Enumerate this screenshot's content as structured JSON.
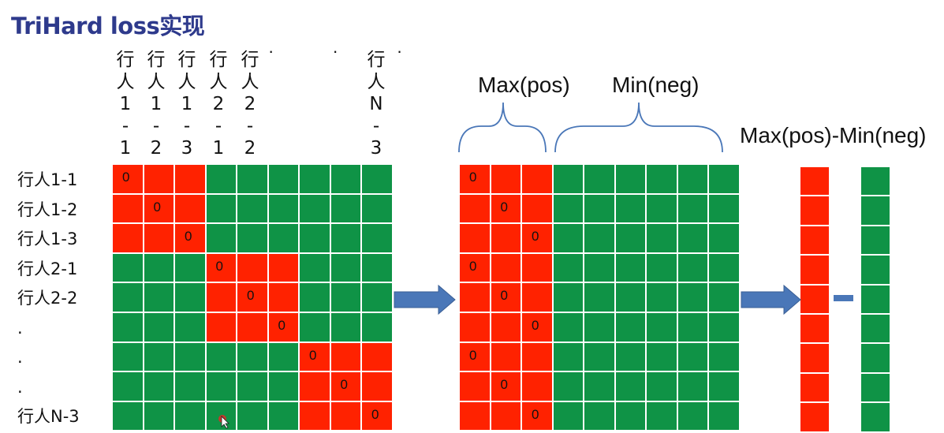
{
  "title": "TriHard loss实现",
  "column_labels": [
    [
      "行",
      "人",
      "1",
      "-",
      "1"
    ],
    [
      "行",
      "人",
      "1",
      "-",
      "2"
    ],
    [
      "行",
      "人",
      "1",
      "-",
      "3"
    ],
    [
      "行",
      "人",
      "2",
      "-",
      "1"
    ],
    [
      "行",
      "人",
      "2",
      "-",
      "2"
    ],
    [
      "行",
      "人",
      "N",
      "-",
      "3"
    ]
  ],
  "column_dots": "· · ·",
  "row_labels": [
    "行人1-1",
    "行人1-2",
    "行人1-3",
    "行人2-1",
    "行人2-2",
    ".",
    ".",
    ".",
    "行人N-3"
  ],
  "cell_zero": "0",
  "matrix1": {
    "colors": [
      "RRRGGGGGG",
      "RRRGGGGGG",
      "RRRGGGGGG",
      "GGGRRRGGG",
      "GGGRRRGGG",
      "GGGRRRGGG",
      "GGGGGGRRR",
      "GGGGGGRRR",
      "GGGGGGRRR"
    ],
    "zeros": [
      [
        0,
        0
      ],
      [
        1,
        1
      ],
      [
        2,
        2
      ],
      [
        3,
        3
      ],
      [
        4,
        4
      ],
      [
        5,
        5
      ],
      [
        6,
        6
      ],
      [
        7,
        7
      ],
      [
        8,
        8
      ]
    ]
  },
  "matrix2": {
    "colors": [
      "RRRGGGGGG",
      "RRRGGGGGG",
      "RRRGGGGGG",
      "RRRGGGGGG",
      "RRRGGGGGG",
      "RRRGGGGGG",
      "RRRGGGGGG",
      "RRRGGGGGG",
      "RRRGGGGGG"
    ],
    "zeros": [
      [
        0,
        0
      ],
      [
        1,
        1
      ],
      [
        2,
        2
      ],
      [
        3,
        0
      ],
      [
        4,
        1
      ],
      [
        5,
        2
      ],
      [
        6,
        0
      ],
      [
        7,
        1
      ],
      [
        8,
        2
      ]
    ]
  },
  "labels": {
    "max_pos": "Max(pos)",
    "min_neg": "Min(neg)",
    "result": "Max(pos)-Min(neg)"
  },
  "colors": {
    "red": "#ff2200",
    "green": "#0f9346",
    "arrow": "#4a77b8",
    "title": "#2e3a8c"
  }
}
